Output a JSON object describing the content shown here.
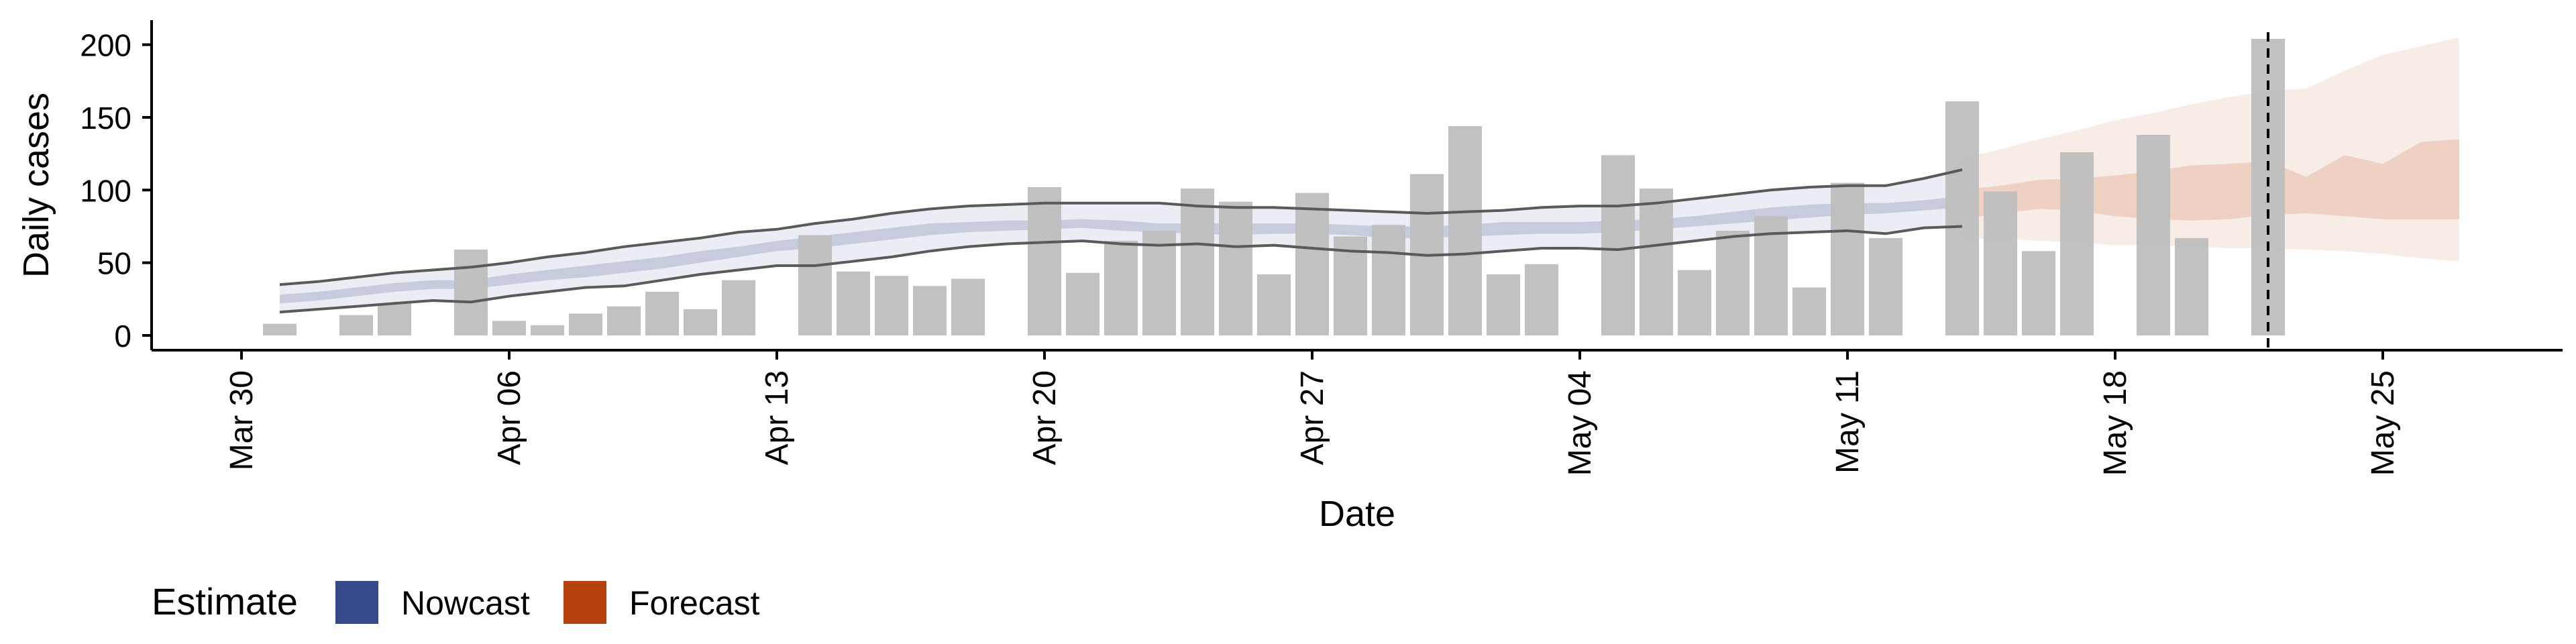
{
  "chart_data": {
    "type": "bar",
    "title": "",
    "xlabel": "Date",
    "ylabel": "Daily cases",
    "ylim": [
      -10,
      215
    ],
    "grid": false,
    "legend_position": "bottom-left",
    "x_ticks": [
      "Mar 30",
      "Apr 06",
      "Apr 13",
      "Apr 20",
      "Apr 27",
      "May 04",
      "May 11",
      "May 18",
      "May 25"
    ],
    "y_ticks": [
      0,
      50,
      100,
      150,
      200
    ],
    "vline_date": "May 22",
    "legend": {
      "title": "Estimate",
      "items": [
        {
          "label": "Nowcast",
          "color": "#354a8a"
        },
        {
          "label": "Forecast",
          "color": "#b8420e"
        }
      ]
    },
    "bars": {
      "color": "#bebebe",
      "x": [
        "Mar 31",
        "Apr 01",
        "Apr 02",
        "Apr 03",
        "Apr 04",
        "Apr 05",
        "Apr 06",
        "Apr 07",
        "Apr 08",
        "Apr 09",
        "Apr 10",
        "Apr 11",
        "Apr 12",
        "Apr 13",
        "Apr 14",
        "Apr 15",
        "Apr 16",
        "Apr 17",
        "Apr 18",
        "Apr 19",
        "Apr 20",
        "Apr 21",
        "Apr 22",
        "Apr 23",
        "Apr 24",
        "Apr 25",
        "Apr 26",
        "Apr 27",
        "Apr 28",
        "Apr 29",
        "Apr 30",
        "May 01",
        "May 02",
        "May 03",
        "May 04",
        "May 05",
        "May 06",
        "May 07",
        "May 08",
        "May 09",
        "May 10",
        "May 11",
        "May 12",
        "May 13",
        "May 14",
        "May 15",
        "May 16",
        "May 17",
        "May 18",
        "May 19",
        "May 20",
        "May 21",
        "May 22"
      ],
      "values": [
        8,
        0,
        14,
        22,
        0,
        59,
        10,
        7,
        15,
        20,
        30,
        18,
        38,
        0,
        69,
        44,
        41,
        34,
        39,
        0,
        102,
        43,
        65,
        72,
        101,
        92,
        42,
        98,
        68,
        76,
        111,
        144,
        42,
        49,
        0,
        124,
        101,
        45,
        72,
        82,
        33,
        105,
        67,
        0,
        161,
        99,
        58,
        126,
        0,
        138,
        67,
        0,
        204
      ]
    },
    "nowcast": {
      "color": "#354a8a",
      "x": [
        "Mar 31",
        "Apr 01",
        "Apr 02",
        "Apr 03",
        "Apr 04",
        "Apr 05",
        "Apr 06",
        "Apr 07",
        "Apr 08",
        "Apr 09",
        "Apr 10",
        "Apr 11",
        "Apr 12",
        "Apr 13",
        "Apr 14",
        "Apr 15",
        "Apr 16",
        "Apr 17",
        "Apr 18",
        "Apr 19",
        "Apr 20",
        "Apr 21",
        "Apr 22",
        "Apr 23",
        "Apr 24",
        "Apr 25",
        "Apr 26",
        "Apr 27",
        "Apr 28",
        "Apr 29",
        "Apr 30",
        "May 01",
        "May 02",
        "May 03",
        "May 04",
        "May 05",
        "May 06",
        "May 07",
        "May 08",
        "May 09",
        "May 10",
        "May 11",
        "May 12",
        "May 13",
        "May 14"
      ],
      "lower90": [
        16,
        18,
        20,
        22,
        24,
        23,
        27,
        30,
        33,
        34,
        38,
        42,
        45,
        48,
        48,
        51,
        54,
        58,
        61,
        63,
        64,
        65,
        63,
        62,
        63,
        61,
        62,
        60,
        58,
        57,
        55,
        56,
        58,
        60,
        60,
        59,
        62,
        65,
        68,
        70,
        71,
        72,
        70,
        74,
        75
      ],
      "lower50": [
        22,
        24,
        27,
        30,
        32,
        32,
        35,
        38,
        40,
        43,
        46,
        50,
        54,
        58,
        60,
        63,
        66,
        69,
        71,
        72,
        73,
        74,
        72,
        71,
        70,
        69,
        70,
        70,
        69,
        67,
        67,
        68,
        69,
        70,
        70,
        71,
        73,
        75,
        77,
        79,
        81,
        83,
        84,
        86,
        88
      ],
      "upper50": [
        28,
        30,
        33,
        36,
        38,
        38,
        42,
        45,
        48,
        51,
        54,
        58,
        61,
        65,
        68,
        71,
        74,
        77,
        78,
        79,
        79,
        80,
        79,
        77,
        77,
        77,
        77,
        77,
        76,
        75,
        75,
        76,
        78,
        78,
        78,
        79,
        80,
        82,
        85,
        88,
        90,
        91,
        91,
        93,
        96
      ],
      "upper90": [
        35,
        37,
        40,
        43,
        45,
        47,
        50,
        54,
        57,
        61,
        64,
        67,
        71,
        73,
        77,
        80,
        84,
        87,
        89,
        90,
        91,
        91,
        91,
        91,
        89,
        88,
        88,
        87,
        86,
        85,
        84,
        85,
        86,
        88,
        89,
        89,
        91,
        94,
        97,
        100,
        102,
        103,
        103,
        108,
        114
      ]
    },
    "forecast": {
      "color": "#b8420e",
      "x": [
        "May 14",
        "May 15",
        "May 16",
        "May 17",
        "May 18",
        "May 19",
        "May 20",
        "May 21",
        "May 22",
        "May 23",
        "May 24",
        "May 25",
        "May 26",
        "May 27"
      ],
      "lower90": [
        66,
        67,
        65,
        64,
        62,
        62,
        61,
        60,
        60,
        59,
        58,
        56,
        53,
        51
      ],
      "lower50": [
        80,
        84,
        87,
        86,
        82,
        80,
        79,
        80,
        83,
        84,
        82,
        80,
        80,
        80
      ],
      "upper50": [
        100,
        103,
        107,
        108,
        110,
        113,
        117,
        118,
        120,
        109,
        124,
        118,
        133,
        135
      ],
      "upper90": [
        122,
        128,
        135,
        141,
        148,
        153,
        159,
        164,
        168,
        170,
        182,
        193,
        199,
        205
      ]
    }
  }
}
